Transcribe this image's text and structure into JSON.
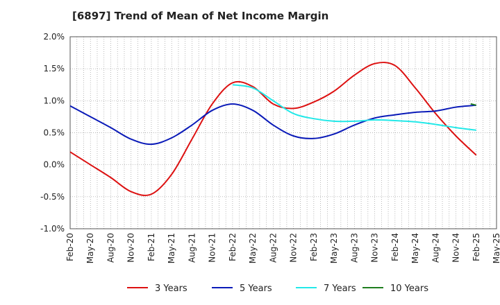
{
  "chart_data": {
    "type": "line",
    "title": "[6897]  Trend of Mean of Net Income Margin",
    "xlabel": "",
    "ylabel": "",
    "ylim": [
      -1.0,
      2.0
    ],
    "yticks": [
      "2.0%",
      "1.5%",
      "1.0%",
      "0.5%",
      "0.0%",
      "-0.5%",
      "-1.0%"
    ],
    "ytick_values": [
      2.0,
      1.5,
      1.0,
      0.5,
      0.0,
      -0.5,
      -1.0
    ],
    "x_categories": [
      "Feb-20",
      "May-20",
      "Aug-20",
      "Nov-20",
      "Feb-21",
      "May-21",
      "Aug-21",
      "Nov-21",
      "Feb-22",
      "May-22",
      "Aug-22",
      "Nov-22",
      "Feb-23",
      "May-23",
      "Aug-23",
      "Nov-23",
      "Feb-24",
      "May-24",
      "Aug-24",
      "Nov-24",
      "Feb-25",
      "May-25"
    ],
    "grid": true,
    "legend_position": "bottom",
    "series": [
      {
        "name": "3 Years",
        "color": "#dd1111",
        "values": [
          0.2,
          0.0,
          -0.2,
          -0.42,
          -0.46,
          -0.15,
          0.4,
          0.95,
          1.28,
          1.22,
          0.95,
          0.88,
          0.98,
          1.15,
          1.4,
          1.58,
          1.55,
          1.2,
          0.8,
          0.45,
          0.15,
          null
        ]
      },
      {
        "name": "5 Years",
        "color": "#0a1ab8",
        "values": [
          0.92,
          0.75,
          0.58,
          0.4,
          0.32,
          0.42,
          0.62,
          0.85,
          0.95,
          0.85,
          0.62,
          0.45,
          0.41,
          0.48,
          0.62,
          0.73,
          0.78,
          0.82,
          0.84,
          0.9,
          0.93,
          null
        ]
      },
      {
        "name": "7 Years",
        "color": "#22e8e8",
        "values": [
          null,
          null,
          null,
          null,
          null,
          null,
          null,
          null,
          1.25,
          1.2,
          1.0,
          0.8,
          0.72,
          0.68,
          0.68,
          0.7,
          0.69,
          0.67,
          0.63,
          0.58,
          0.54,
          null
        ]
      },
      {
        "name": "10 Years",
        "color": "#1e7d1e",
        "values": [
          null,
          null,
          null,
          null,
          null,
          null,
          null,
          null,
          null,
          null,
          null,
          null,
          null,
          null,
          null,
          null,
          null,
          null,
          null,
          null,
          0.93,
          null
        ]
      }
    ]
  }
}
